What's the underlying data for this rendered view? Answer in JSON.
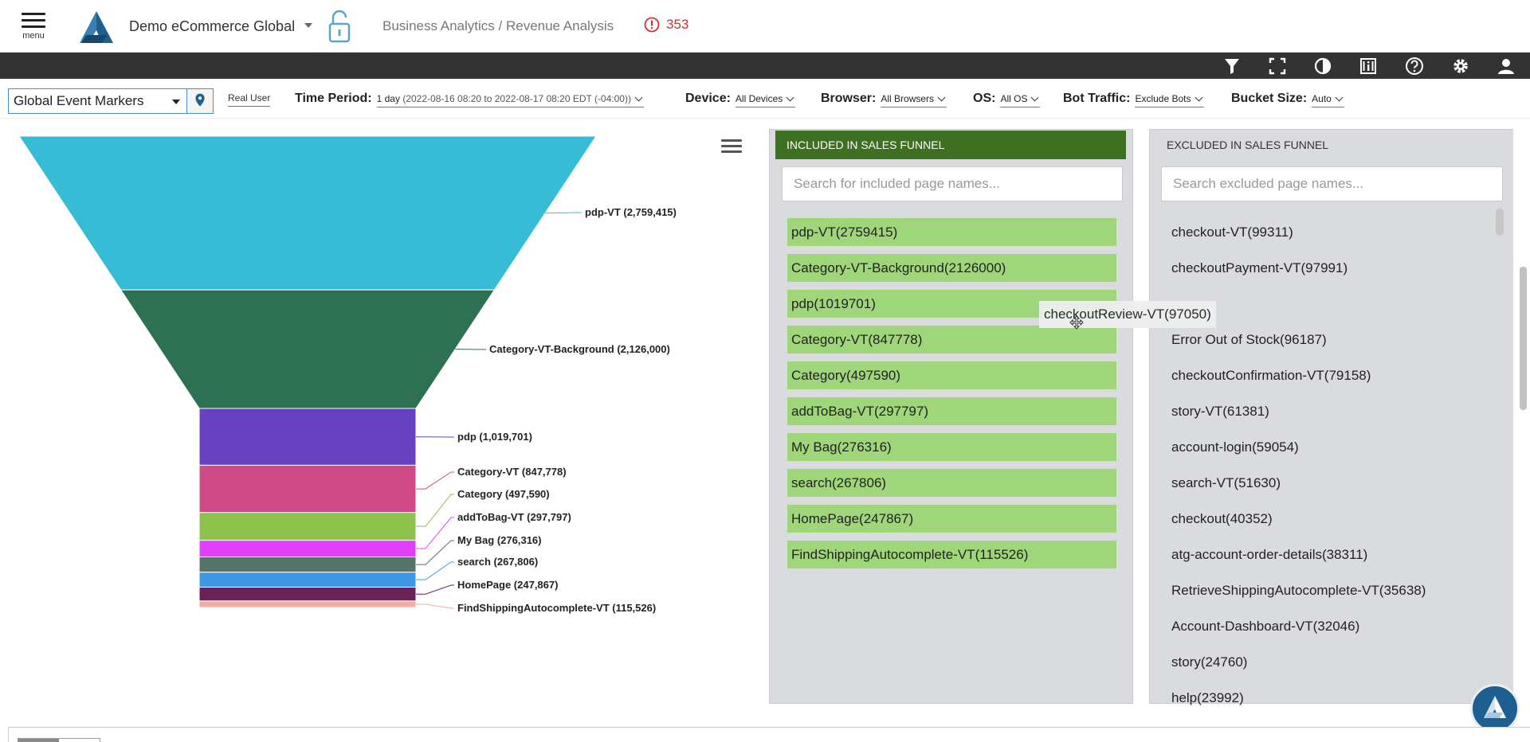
{
  "header": {
    "menu_label": "menu",
    "app_name": "Demo eCommerce Global",
    "breadcrumb": "Business Analytics / Revenue Analysis",
    "alert_count": "353",
    "accent_color": "#1f5f8f",
    "alert_color": "#d32f2f"
  },
  "toolbar": {
    "icons": [
      "filter-icon",
      "fullscreen-icon",
      "contrast-icon",
      "info-panel-icon",
      "help-icon",
      "settings-icon",
      "user-icon"
    ]
  },
  "filters": {
    "event_markers": "Global Event Markers",
    "real_user": "Real User",
    "time_period_label": "Time Period:",
    "time_period_value": "1 day",
    "time_period_range": "(2022-08-16 08:20 to 2022-08-17 08:20 EDT (-04:00))",
    "device_label": "Device:",
    "device_value": "All Devices",
    "browser_label": "Browser:",
    "browser_value": "All Browsers",
    "os_label": "OS:",
    "os_value": "All OS",
    "bot_label": "Bot Traffic:",
    "bot_value": "Exclude Bots",
    "bucket_label": "Bucket Size:",
    "bucket_value": "Auto"
  },
  "chart_data": {
    "type": "funnel",
    "categories": [
      "pdp-VT",
      "Category-VT-Background",
      "pdp",
      "Category-VT",
      "Category",
      "addToBag-VT",
      "My Bag",
      "search",
      "HomePage",
      "FindShippingAutocomplete-VT"
    ],
    "values": [
      2759415,
      2126000,
      1019701,
      847778,
      497590,
      297797,
      276316,
      267806,
      247867,
      115526
    ],
    "labels": [
      "pdp-VT (2,759,415)",
      "Category-VT-Background (2,126,000)",
      "pdp (1,019,701)",
      "Category-VT (847,778)",
      "Category (497,590)",
      "addToBag-VT (297,797)",
      "My Bag (276,316)",
      "search (267,806)",
      "HomePage (247,867)",
      "FindShippingAutocomplete-VT (115,526)"
    ],
    "colors": [
      "#37bcd5",
      "#2d7052",
      "#6741c2",
      "#cf4a87",
      "#8cc14b",
      "#e040fb",
      "#567468",
      "#3d99e8",
      "#6a2156",
      "#f5a9a0"
    ]
  },
  "included": {
    "header": "INCLUDED IN SALES FUNNEL",
    "search_placeholder": "Search for included page names...",
    "items": [
      "pdp-VT(2759415)",
      "Category-VT-Background(2126000)",
      "pdp(1019701)",
      "Category-VT(847778)",
      "Category(497590)",
      "addToBag-VT(297797)",
      "My Bag(276316)",
      "search(267806)",
      "HomePage(247867)",
      "FindShippingAutocomplete-VT(115526)"
    ]
  },
  "excluded": {
    "header": "EXCLUDED IN SALES FUNNEL",
    "search_placeholder": "Search excluded page names...",
    "items": [
      "checkout-VT(99311)",
      "checkoutPayment-VT(97991)",
      "",
      "Error Out of Stock(96187)",
      "checkoutConfirmation-VT(79158)",
      "story-VT(61381)",
      "account-login(59054)",
      "search-VT(51630)",
      "checkout(40352)",
      "atg-account-order-details(38311)",
      "RetrieveShippingAutocomplete-VT(35638)",
      "Account-Dashboard-VT(32046)",
      "story(24760)",
      "help(23992)"
    ]
  },
  "drag_ghost": "checkoutReview-VT(97050)"
}
